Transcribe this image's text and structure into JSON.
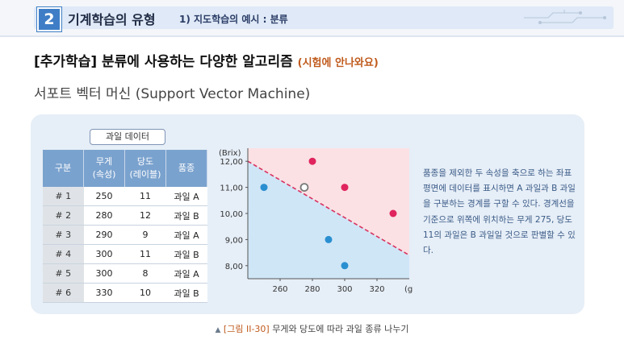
{
  "header": {
    "chapter_number": "2",
    "section_title": "기계학습의 유형",
    "sub_title": "1) 지도학습의 예시 : 분류"
  },
  "main": {
    "title": "[추가학습] 분류에 사용하는 다양한 알고리즘",
    "title_note": "(시험에 안나와요)",
    "svm_title": "서포트 벡터 머신 (Support Vector Machine)"
  },
  "table": {
    "label": "과일 데이터",
    "headers": [
      "구분",
      "무게\n(속성)",
      "당도\n(레이블)",
      "품종"
    ],
    "rows": [
      [
        "# 1",
        "250",
        "11",
        "과일 A"
      ],
      [
        "# 2",
        "280",
        "12",
        "과일 B"
      ],
      [
        "# 3",
        "290",
        "9",
        "과일 A"
      ],
      [
        "# 4",
        "300",
        "11",
        "과일 B"
      ],
      [
        "# 5",
        "300",
        "8",
        "과일 A"
      ],
      [
        "# 6",
        "330",
        "10",
        "과일 B"
      ]
    ]
  },
  "chart_data": {
    "type": "scatter",
    "ylabel": "(Brix)",
    "xlabel": "(g)",
    "xlim": [
      240,
      340
    ],
    "ylim": [
      7.5,
      12.5
    ],
    "x_ticks": [
      260,
      280,
      300,
      320
    ],
    "y_ticks": [
      8.0,
      9.0,
      10.0,
      11.0,
      12.0
    ],
    "x_tick_labels": [
      "260",
      "280",
      "300",
      "320"
    ],
    "y_tick_labels": [
      "8,00",
      "9,00",
      "10,00",
      "11,00",
      "12,00"
    ],
    "series": [
      {
        "points": [
          [
            250,
            11
          ],
          [
            290,
            9
          ],
          [
            300,
            8
          ]
        ],
        "color": "#2a8fd0"
      },
      {
        "points": [
          [
            280,
            12
          ],
          [
            300,
            11
          ],
          [
            330,
            10
          ]
        ],
        "color": "#e0245e"
      },
      {
        "points": [
          [
            275,
            11
          ]
        ],
        "color": "#ffffff"
      }
    ],
    "boundary": [
      [
        240,
        12
      ],
      [
        340,
        8.4
      ]
    ],
    "region_top_color": "#fbe1e4",
    "region_bottom_color": "#cfe6f7"
  },
  "explain": "품종을 제외한 두 속성을 축으로 하는 좌표평면에 데이터를 표시하면 A 과일과 B 과일을 구분하는 경계를 구할 수 있다. 경계선을 기준으로 위쪽에 위치하는 무게 275, 당도 11의 과일은 B 과일일 것으로 판별할 수 있다.",
  "caption": {
    "arrow": "▲",
    "tag": "[그림 II-30]",
    "text": "무게와 당도에 따라 과일 종류 나누기"
  },
  "colors": {
    "accent": "#3f7ec6",
    "table_header": "#7aa2ce",
    "note": "#c05a1c"
  }
}
